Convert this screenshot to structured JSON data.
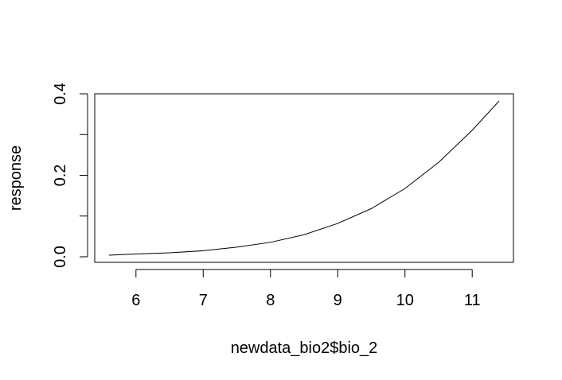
{
  "chart_data": {
    "type": "line",
    "title": "",
    "xlabel": "newdata_bio2$bio_2",
    "ylabel": "response",
    "xlim": [
      5.6,
      11.4
    ],
    "ylim": [
      0.0,
      0.39
    ],
    "x_ticks": [
      6,
      7,
      8,
      9,
      10,
      11
    ],
    "x_tick_labels": [
      "6",
      "7",
      "8",
      "9",
      "10",
      "11"
    ],
    "y_ticks": [
      0.0,
      0.1,
      0.2,
      0.3,
      0.4
    ],
    "y_tick_labels": [
      "0.0",
      "",
      "0.2",
      "",
      "0.4"
    ],
    "grid": false,
    "legend": "none",
    "line_color": "#000000",
    "series": [
      {
        "x": [
          5.6,
          6.0,
          6.5,
          7.0,
          7.5,
          8.0,
          8.5,
          9.0,
          9.5,
          10.0,
          10.5,
          11.0,
          11.4
        ],
        "y": [
          0.004,
          0.007,
          0.01,
          0.015,
          0.024,
          0.036,
          0.055,
          0.083,
          0.12,
          0.17,
          0.235,
          0.315,
          0.388
        ]
      }
    ]
  }
}
